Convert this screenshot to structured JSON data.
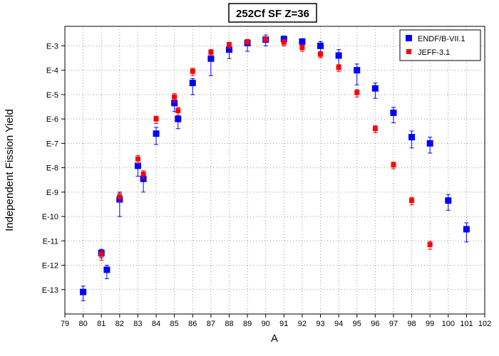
{
  "chart_data": {
    "type": "scatter",
    "title": "252Cf SF Z=36",
    "xlabel": "A",
    "ylabel": "Independent Fission Yield",
    "xlim": [
      79,
      102
    ],
    "ylim_exponent": [
      -14,
      -2.2
    ],
    "y_scale": "log",
    "grid": true,
    "legend_position": "top-right",
    "x_ticks": [
      "79",
      "80",
      "81",
      "82",
      "83",
      "84",
      "85",
      "86",
      "87",
      "88",
      "89",
      "90",
      "91",
      "92",
      "93",
      "94",
      "95",
      "96",
      "97",
      "98",
      "99",
      "100",
      "101",
      "102"
    ],
    "y_ticks": [
      {
        "label": "E-3",
        "exp": -3
      },
      {
        "label": "E-4",
        "exp": -4
      },
      {
        "label": "E-5",
        "exp": -5
      },
      {
        "label": "E-6",
        "exp": -6
      },
      {
        "label": "E-7",
        "exp": -7
      },
      {
        "label": "E-8",
        "exp": -8
      },
      {
        "label": "E-9",
        "exp": -9
      },
      {
        "label": "E-10",
        "exp": -10
      },
      {
        "label": "E-11",
        "exp": -11
      },
      {
        "label": "E-12",
        "exp": -12
      },
      {
        "label": "E-13",
        "exp": -13
      }
    ],
    "series": [
      {
        "name": "ENDF/B-VII.1",
        "color": "#0000ff",
        "marker": "square",
        "points": [
          {
            "x": 80,
            "y": 8e-14,
            "lo": 3.5e-14,
            "hi": 1.4e-13
          },
          {
            "x": 81,
            "y": 3.2e-12,
            "lo": 2e-12,
            "hi": 4.5e-12
          },
          {
            "x": 81.3,
            "y": 6.5e-13,
            "lo": 2.8e-13,
            "hi": 1e-12
          },
          {
            "x": 82,
            "y": 5e-10,
            "lo": 1e-10,
            "hi": 1e-09
          },
          {
            "x": 83,
            "y": 1.2e-08,
            "lo": 4.5e-09,
            "hi": 2.1e-08
          },
          {
            "x": 83.3,
            "y": 3.5e-09,
            "lo": 1e-09,
            "hi": 6e-09
          },
          {
            "x": 84,
            "y": 2.5e-07,
            "lo": 9e-08,
            "hi": 4.5e-07
          },
          {
            "x": 85,
            "y": 4.5e-06,
            "lo": 2e-06,
            "hi": 7e-06
          },
          {
            "x": 85.2,
            "y": 1e-06,
            "lo": 4e-07,
            "hi": 1.8e-06
          },
          {
            "x": 86,
            "y": 3e-05,
            "lo": 1e-05,
            "hi": 4.5e-05
          },
          {
            "x": 87,
            "y": 0.0003,
            "lo": 6e-05,
            "hi": 0.00055
          },
          {
            "x": 88,
            "y": 0.0007,
            "lo": 0.0003,
            "hi": 0.0011
          },
          {
            "x": 89,
            "y": 0.0013,
            "lo": 0.0006,
            "hi": 0.0017
          },
          {
            "x": 90,
            "y": 0.0018,
            "lo": 0.001,
            "hi": 0.0028
          },
          {
            "x": 91,
            "y": 0.0019,
            "lo": 0.001,
            "hi": 0.0025
          },
          {
            "x": 92,
            "y": 0.0015,
            "lo": 0.0008,
            "hi": 0.0019
          },
          {
            "x": 93,
            "y": 0.001,
            "lo": 0.00045,
            "hi": 0.0015
          },
          {
            "x": 94,
            "y": 0.0004,
            "lo": 0.00015,
            "hi": 0.0007
          },
          {
            "x": 95,
            "y": 0.0001,
            "lo": 2.5e-05,
            "hi": 0.00018
          },
          {
            "x": 96,
            "y": 1.8e-05,
            "lo": 7e-06,
            "hi": 3e-05
          },
          {
            "x": 97,
            "y": 1.8e-06,
            "lo": 7e-07,
            "hi": 3e-06
          },
          {
            "x": 98,
            "y": 1.8e-07,
            "lo": 6.5e-08,
            "hi": 3.2e-07
          },
          {
            "x": 99,
            "y": 1e-07,
            "lo": 4e-08,
            "hi": 1.8e-07
          },
          {
            "x": 100,
            "y": 4.5e-10,
            "lo": 1.8e-10,
            "hi": 8e-10
          },
          {
            "x": 101,
            "y": 3e-11,
            "lo": 9e-12,
            "hi": 5.5e-11
          }
        ]
      },
      {
        "name": "JEFF-3.1",
        "color": "#ff0000",
        "marker": "square",
        "points": [
          {
            "x": 81,
            "y": 2.8e-12,
            "lo": 1.6e-12,
            "hi": 4e-12
          },
          {
            "x": 82,
            "y": 6.5e-10,
            "lo": 4e-10,
            "hi": 9e-10
          },
          {
            "x": 83,
            "y": 2.3e-08,
            "lo": 1.5e-08,
            "hi": 3.2e-08
          },
          {
            "x": 83.3,
            "y": 5.5e-09,
            "lo": 3.5e-09,
            "hi": 7.5e-09
          },
          {
            "x": 84,
            "y": 1e-06,
            "lo": 6.5e-07,
            "hi": 1.3e-06
          },
          {
            "x": 85,
            "y": 8e-06,
            "lo": 5e-06,
            "hi": 1.1e-05
          },
          {
            "x": 85.2,
            "y": 2.2e-06,
            "lo": 1.4e-06,
            "hi": 3e-06
          },
          {
            "x": 86,
            "y": 9e-05,
            "lo": 6e-05,
            "hi": 0.00012
          },
          {
            "x": 87,
            "y": 0.00055,
            "lo": 0.0004,
            "hi": 0.0007
          },
          {
            "x": 88,
            "y": 0.0011,
            "lo": 0.0008,
            "hi": 0.0014
          },
          {
            "x": 89,
            "y": 0.0015,
            "lo": 0.0011,
            "hi": 0.0018
          },
          {
            "x": 90,
            "y": 0.0019,
            "lo": 0.0015,
            "hi": 0.0023
          },
          {
            "x": 91,
            "y": 0.0014,
            "lo": 0.001,
            "hi": 0.0018
          },
          {
            "x": 92,
            "y": 0.00085,
            "lo": 0.0006,
            "hi": 0.0011
          },
          {
            "x": 93,
            "y": 0.00045,
            "lo": 0.00032,
            "hi": 0.00058
          },
          {
            "x": 94,
            "y": 0.00013,
            "lo": 9e-05,
            "hi": 0.00017
          },
          {
            "x": 95,
            "y": 1.2e-05,
            "lo": 8e-06,
            "hi": 1.6e-05
          },
          {
            "x": 96,
            "y": 4e-07,
            "lo": 2.7e-07,
            "hi": 5.3e-07
          },
          {
            "x": 97,
            "y": 1.3e-08,
            "lo": 9e-09,
            "hi": 1.7e-08
          },
          {
            "x": 98,
            "y": 4.5e-10,
            "lo": 3e-10,
            "hi": 6e-10
          },
          {
            "x": 99,
            "y": 7e-12,
            "lo": 4.5e-12,
            "hi": 9.5e-12
          }
        ]
      }
    ]
  }
}
